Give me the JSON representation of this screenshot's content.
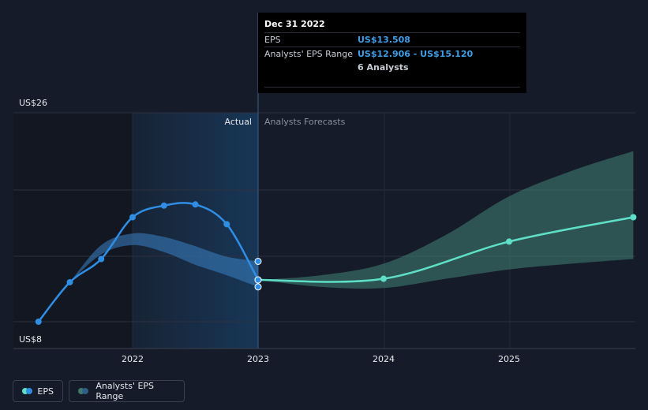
{
  "chart_data": {
    "type": "line",
    "y_axis": {
      "min_label": "US$8",
      "max_label": "US$26",
      "ylim": [
        8,
        26
      ],
      "grid": true
    },
    "x_axis": {
      "tick_labels": [
        "2022",
        "2023",
        "2024",
        "2025"
      ],
      "tick_values": [
        2022,
        2023,
        2024,
        2025
      ],
      "xlim": [
        2021.25,
        2025.99
      ]
    },
    "regions": {
      "actual_label": "Actual",
      "forecast_label": "Analysts Forecasts",
      "divider_x": 2023.0
    },
    "series": [
      {
        "name": "EPS",
        "color": "#2f8de4",
        "points": [
          {
            "x": 2021.25,
            "y": 8.0
          },
          {
            "x": 2021.5,
            "y": 11.4
          },
          {
            "x": 2021.75,
            "y": 13.4
          },
          {
            "x": 2022.0,
            "y": 17.0
          },
          {
            "x": 2022.25,
            "y": 18.0
          },
          {
            "x": 2022.5,
            "y": 18.1
          },
          {
            "x": 2022.75,
            "y": 16.4
          },
          {
            "x": 2023.0,
            "y": 11.6
          }
        ]
      },
      {
        "name": "EPS Forecast",
        "color": "#5ee0c8",
        "points": [
          {
            "x": 2023.0,
            "y": 11.6
          },
          {
            "x": 2024.0,
            "y": 11.7
          },
          {
            "x": 2025.0,
            "y": 14.9
          },
          {
            "x": 2025.99,
            "y": 17.0
          }
        ]
      }
    ],
    "ranges": [
      {
        "name": "Analysts' EPS Range",
        "segment": "actual",
        "color": "#3a82c4",
        "upper": [
          {
            "x": 2021.5,
            "y": 11.4
          },
          {
            "x": 2021.75,
            "y": 14.6
          },
          {
            "x": 2022.0,
            "y": 15.6
          },
          {
            "x": 2022.25,
            "y": 15.3
          },
          {
            "x": 2022.5,
            "y": 14.5
          },
          {
            "x": 2022.75,
            "y": 13.6
          },
          {
            "x": 2023.0,
            "y": 13.2
          }
        ],
        "lower": [
          {
            "x": 2021.5,
            "y": 11.4
          },
          {
            "x": 2021.75,
            "y": 13.8
          },
          {
            "x": 2022.0,
            "y": 14.6
          },
          {
            "x": 2022.25,
            "y": 14.0
          },
          {
            "x": 2022.5,
            "y": 12.9
          },
          {
            "x": 2022.75,
            "y": 12.0
          },
          {
            "x": 2023.0,
            "y": 11.0
          }
        ]
      },
      {
        "name": "Analysts' EPS Range",
        "segment": "forecast",
        "color": "#3d7a70",
        "upper": [
          {
            "x": 2023.0,
            "y": 11.6
          },
          {
            "x": 2023.5,
            "y": 12.0
          },
          {
            "x": 2024.0,
            "y": 13.0
          },
          {
            "x": 2024.5,
            "y": 15.5
          },
          {
            "x": 2025.0,
            "y": 18.8
          },
          {
            "x": 2025.5,
            "y": 21.0
          },
          {
            "x": 2025.99,
            "y": 22.7
          }
        ],
        "lower": [
          {
            "x": 2023.0,
            "y": 11.6
          },
          {
            "x": 2023.5,
            "y": 11.0
          },
          {
            "x": 2024.0,
            "y": 10.9
          },
          {
            "x": 2024.5,
            "y": 11.7
          },
          {
            "x": 2025.0,
            "y": 12.5
          },
          {
            "x": 2025.5,
            "y": 13.0
          },
          {
            "x": 2025.99,
            "y": 13.4
          }
        ]
      }
    ],
    "tooltip": {
      "date": "Dec 31 2022",
      "rows": [
        {
          "label": "EPS",
          "value": "US$13.508"
        },
        {
          "label": "Analysts' EPS Range",
          "value": "US$12.906 - US$15.120"
        }
      ],
      "analysts": "6 Analysts"
    },
    "legend": [
      {
        "label": "EPS",
        "colors": [
          "#2f8de4",
          "#5ee0c8"
        ]
      },
      {
        "label": "Analysts' EPS Range",
        "colors": [
          "#2f5f86",
          "#3d7a70"
        ]
      }
    ]
  }
}
